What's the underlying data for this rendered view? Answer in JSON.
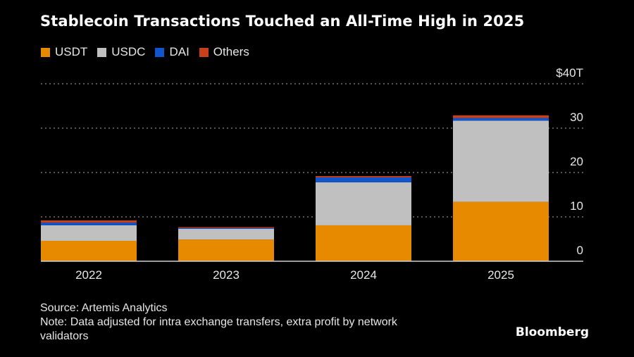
{
  "chart_data": {
    "type": "bar",
    "stacked": true,
    "title": "Stablecoin Transactions Touched an All-Time High in 2025",
    "categories": [
      "2022",
      "2023",
      "2024",
      "2025"
    ],
    "series": [
      {
        "name": "USDT",
        "color": "#E88A00",
        "values": [
          4.6,
          4.9,
          8.1,
          13.4
        ]
      },
      {
        "name": "USDC",
        "color": "#C0C0C0",
        "values": [
          3.5,
          2.4,
          9.7,
          18.3
        ]
      },
      {
        "name": "DAI",
        "color": "#1155CC",
        "values": [
          0.6,
          0.2,
          1.1,
          0.6
        ]
      },
      {
        "name": "Others",
        "color": "#C8401A",
        "values": [
          0.5,
          0.2,
          0.3,
          0.6
        ]
      }
    ],
    "xlabel": "",
    "ylabel": "",
    "ylim": [
      0,
      40
    ],
    "yticks": [
      0,
      10,
      20,
      30,
      40
    ],
    "ytick_labels": [
      "0",
      "10",
      "20",
      "30",
      "40T"
    ],
    "y_unit_prefix": "$",
    "y_axis_side": "right",
    "grid": true,
    "legend_position": "top-left"
  },
  "footer": {
    "source": "Source: Artemis Analytics",
    "note": "Note: Data adjusted for intra exchange transfers, extra profit by network validators",
    "brand": "Bloomberg"
  }
}
